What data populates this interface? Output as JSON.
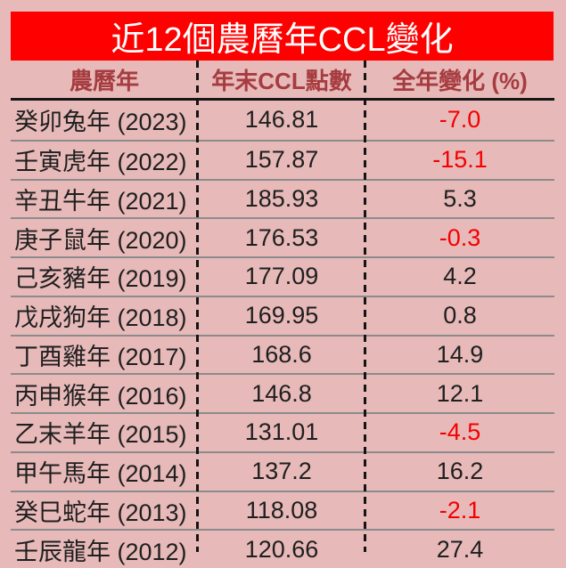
{
  "title": "近12個農曆年CCL變化",
  "table": {
    "columns": [
      {
        "label": "農曆年"
      },
      {
        "label": "年末CCL點數"
      },
      {
        "label": "全年變化 (%)"
      }
    ],
    "rows": [
      {
        "year": "癸卯兔年 (2023)",
        "ccl": "146.81",
        "change": "-7.0"
      },
      {
        "year": "壬寅虎年 (2022)",
        "ccl": "157.87",
        "change": "-15.1"
      },
      {
        "year": "辛丑牛年 (2021)",
        "ccl": "185.93",
        "change": "5.3"
      },
      {
        "year": "庚子鼠年 (2020)",
        "ccl": "176.53",
        "change": "-0.3"
      },
      {
        "year": "己亥豬年 (2019)",
        "ccl": "177.09",
        "change": "4.2"
      },
      {
        "year": "戊戌狗年 (2018)",
        "ccl": "169.95",
        "change": "0.8"
      },
      {
        "year": "丁酉雞年 (2017)",
        "ccl": "168.6",
        "change": "14.9"
      },
      {
        "year": "丙申猴年 (2016)",
        "ccl": "146.8",
        "change": "12.1"
      },
      {
        "year": "乙末羊年 (2015)",
        "ccl": "131.01",
        "change": "-4.5"
      },
      {
        "year": "甲午馬年 (2014)",
        "ccl": "137.2",
        "change": "16.2"
      },
      {
        "year": "癸巳蛇年 (2013)",
        "ccl": "118.08",
        "change": "-2.1"
      },
      {
        "year": "壬辰龍年 (2012)",
        "ccl": "120.66",
        "change": "27.4"
      }
    ]
  },
  "colors": {
    "background": "#e7b9b9",
    "banner": "#fe0000",
    "banner_text": "#ffffff",
    "header_text": "#a63c40",
    "body_text": "#1f1f1f",
    "negative_text": "#f40000",
    "row_separator": "#8b8b8b",
    "header_underline": "#161616",
    "column_divider": "#141414"
  },
  "chart_data": {
    "type": "table",
    "title": "近12個農曆年CCL變化",
    "columns": [
      "農曆年",
      "年末CCL點數",
      "全年變化 (%)"
    ],
    "rows": [
      [
        "癸卯兔年 (2023)",
        146.81,
        -7.0
      ],
      [
        "壬寅虎年 (2022)",
        157.87,
        -15.1
      ],
      [
        "辛丑牛年 (2021)",
        185.93,
        5.3
      ],
      [
        "庚子鼠年 (2020)",
        176.53,
        -0.3
      ],
      [
        "己亥豬年 (2019)",
        177.09,
        4.2
      ],
      [
        "戊戌狗年 (2018)",
        169.95,
        0.8
      ],
      [
        "丁酉雞年 (2017)",
        168.6,
        14.9
      ],
      [
        "丙申猴年 (2016)",
        146.8,
        12.1
      ],
      [
        "乙末羊年 (2015)",
        131.01,
        -4.5
      ],
      [
        "甲午馬年 (2014)",
        137.2,
        16.2
      ],
      [
        "癸巳蛇年 (2013)",
        118.08,
        -2.1
      ],
      [
        "壬辰龍年 (2012)",
        120.66,
        27.4
      ]
    ]
  }
}
